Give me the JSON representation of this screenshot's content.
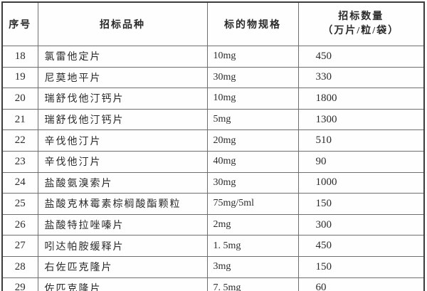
{
  "table": {
    "columns": {
      "serial": "序号",
      "product": "招标品种",
      "spec": "标的物规格",
      "quantity_line1": "招标数量",
      "quantity_line2": "（万片/粒/袋）"
    },
    "rows": [
      {
        "no": "18",
        "name": "氯雷他定片",
        "spec": "10mg",
        "qty": "450"
      },
      {
        "no": "19",
        "name": "尼莫地平片",
        "spec": "30mg",
        "qty": "330"
      },
      {
        "no": "20",
        "name": "瑞舒伐他汀钙片",
        "spec": "10mg",
        "qty": "1800"
      },
      {
        "no": "21",
        "name": "瑞舒伐他汀钙片",
        "spec": "5mg",
        "qty": "1300"
      },
      {
        "no": "22",
        "name": "辛伐他汀片",
        "spec": "20mg",
        "qty": "510"
      },
      {
        "no": "23",
        "name": "辛伐他汀片",
        "spec": "40mg",
        "qty": "90"
      },
      {
        "no": "24",
        "name": "盐酸氨溴索片",
        "spec": "30mg",
        "qty": "1000"
      },
      {
        "no": "25",
        "name": "盐酸克林霉素棕榈酸酯颗粒",
        "spec": "75mg/5ml",
        "qty": "150"
      },
      {
        "no": "26",
        "name": "盐酸特拉唑嗪片",
        "spec": "2mg",
        "qty": "300"
      },
      {
        "no": "27",
        "name": "吲达帕胺缓释片",
        "spec": "1. 5mg",
        "qty": "450"
      },
      {
        "no": "28",
        "name": "右佐匹克隆片",
        "spec": "3mg",
        "qty": "150"
      },
      {
        "no": "29",
        "name": "佐匹克隆片",
        "spec": "7. 5mg",
        "qty": "60"
      }
    ]
  },
  "colors": {
    "outer_border": "#3c3c3c",
    "inner_border": "#6e6e6e",
    "text": "#2b2b2b",
    "background": "#fffefe"
  }
}
